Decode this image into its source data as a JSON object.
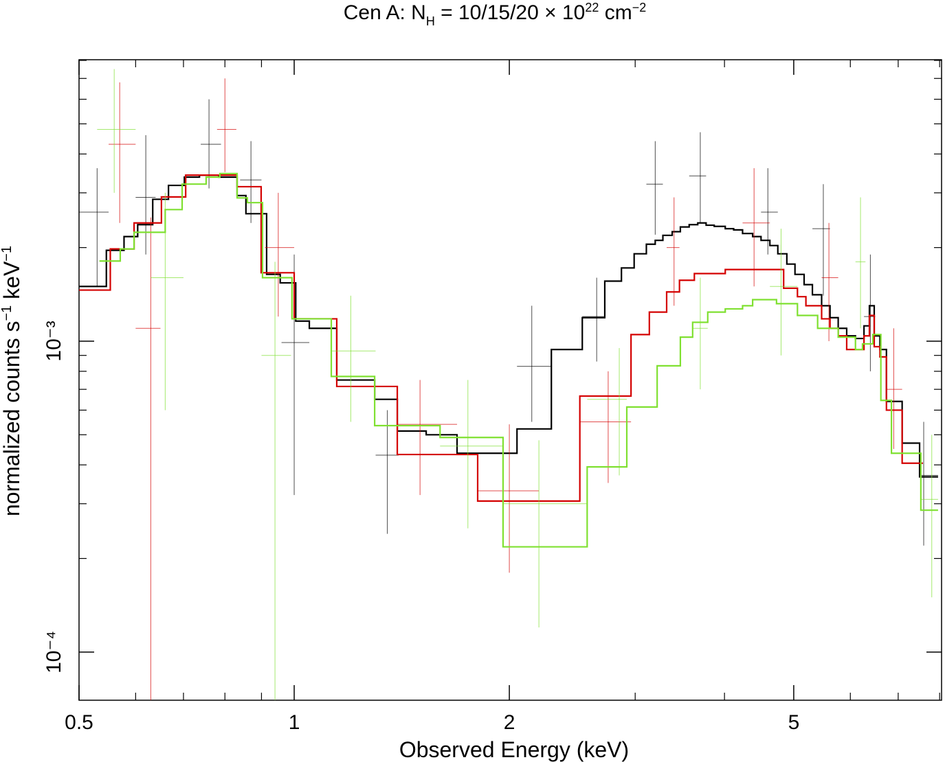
{
  "chart_data": {
    "type": "step",
    "title": [
      "Cen A: N",
      "H",
      " = 10/15/20 × 10",
      "22",
      " cm",
      "−2"
    ],
    "xlabel": "Observed Energy (keV)",
    "ylabel": [
      "normalized counts s",
      "−1",
      " keV",
      "−1"
    ],
    "xscale": "log",
    "yscale": "log",
    "xlim": [
      0.5,
      8.05
    ],
    "ylim": [
      7e-05,
      0.00804
    ],
    "xticks": [
      0.5,
      1,
      2,
      5
    ],
    "xminorticks": [
      0.6,
      0.7,
      0.8,
      0.9,
      3,
      4,
      6,
      7,
      8
    ],
    "yticks": [
      {
        "value": 0.0001,
        "label": "10⁻⁴"
      },
      {
        "value": 0.001,
        "label": "10⁻³"
      }
    ],
    "yminorticks": [
      0.0002,
      0.0003,
      0.0004,
      0.0005,
      0.0006,
      0.0007,
      0.0008,
      0.0009,
      0.002,
      0.003,
      0.004,
      0.005,
      0.006,
      0.007,
      0.008
    ],
    "series": [
      {
        "color": "#000000",
        "bins": [
          0.5,
          0.546,
          0.578,
          0.604,
          0.634,
          0.667,
          0.702,
          0.737,
          0.784,
          0.832,
          0.856,
          0.915,
          0.956,
          1.005,
          1.05,
          1.147,
          1.296,
          1.394,
          1.53,
          1.69,
          2.05,
          2.29,
          2.53,
          2.72,
          2.87,
          2.99,
          3.11,
          3.2,
          3.28,
          3.38,
          3.47,
          3.57,
          3.67,
          3.77,
          3.87,
          4.01,
          4.12,
          4.24,
          4.38,
          4.5,
          4.63,
          4.75,
          4.89,
          5.02,
          5.17,
          5.31,
          5.47,
          5.62,
          5.77,
          5.93,
          6.1,
          6.27,
          6.38,
          6.48,
          6.6,
          6.74,
          7.09,
          7.5,
          7.96
        ],
        "values": [
          0.0015,
          0.00196,
          0.00217,
          0.00237,
          0.00286,
          0.00317,
          0.00337,
          0.00342,
          0.00337,
          0.00294,
          0.00257,
          0.00164,
          0.00154,
          0.00116,
          0.0011,
          0.00075,
          0.00065,
          0.000514,
          0.0005,
          0.000436,
          0.000522,
          0.00094,
          0.00119,
          0.00156,
          0.00172,
          0.00191,
          0.00205,
          0.00211,
          0.00219,
          0.00225,
          0.00233,
          0.00237,
          0.0024,
          0.00236,
          0.00234,
          0.0023,
          0.00228,
          0.00222,
          0.00217,
          0.00211,
          0.00203,
          0.00191,
          0.00177,
          0.00164,
          0.00152,
          0.00141,
          0.0013,
          0.00119,
          0.0011,
          0.00104,
          0.00102,
          0.00112,
          0.0013,
          0.00104,
          0.00094,
          0.00064,
          0.00047,
          0.000366
        ],
        "points": {
          "x": [
            0.53,
            0.62,
            0.76,
            0.87,
            1.0,
            1.35,
            2.15,
            2.65,
            3.2,
            3.7,
            4.6,
            5.5,
            6.4,
            7.6
          ],
          "xlow": [
            0.5,
            0.6,
            0.74,
            0.84,
            0.96,
            1.3,
            2.05,
            2.53,
            3.11,
            3.57,
            4.5,
            5.31,
            6.27,
            7.5
          ],
          "xhigh": [
            0.55,
            0.64,
            0.79,
            0.9,
            1.05,
            1.4,
            2.29,
            2.72,
            3.28,
            3.77,
            4.75,
            5.62,
            6.5,
            7.96
          ],
          "y": [
            0.0026,
            0.0029,
            0.0043,
            0.0033,
            0.00099,
            0.00043,
            0.00083,
            0.0012,
            0.0032,
            0.0034,
            0.0026,
            0.0023,
            0.0012,
            0.00037
          ],
          "ylow": [
            0.0015,
            0.0019,
            0.0031,
            0.0024,
            0.00032,
            0.00024,
            0.00055,
            0.00086,
            0.0022,
            0.0024,
            0.0019,
            0.0014,
            0.0008,
            0.00022
          ],
          "yhigh": [
            0.0036,
            0.0046,
            0.006,
            0.0044,
            0.0019,
            0.0006,
            0.0013,
            0.0016,
            0.0044,
            0.0047,
            0.0036,
            0.0032,
            0.0019,
            0.00055
          ]
        }
      },
      {
        "color": "#d40000",
        "bins": [
          0.5,
          0.553,
          0.597,
          0.652,
          0.705,
          0.832,
          0.899,
          1.0,
          1.147,
          1.394,
          1.806,
          2.51,
          2.96,
          3.14,
          3.32,
          3.46,
          3.63,
          4.01,
          4.84,
          5.06,
          5.2,
          5.47,
          5.62,
          5.77,
          5.93,
          6.27,
          6.38,
          6.48,
          6.6,
          6.74,
          7.09,
          7.58
        ],
        "values": [
          0.00146,
          0.00198,
          0.0024,
          0.00291,
          0.00342,
          0.00314,
          0.00166,
          0.00118,
          0.000715,
          0.000432,
          0.000306,
          0.000666,
          0.00105,
          0.00124,
          0.00144,
          0.00157,
          0.00165,
          0.0017,
          0.00148,
          0.00139,
          0.0013,
          0.00118,
          0.0011,
          0.00104,
          0.00094,
          0.00104,
          0.00121,
          0.00096,
          0.00089,
          0.0006,
          0.000405
        ],
        "points": {
          "x": [
            0.57,
            0.63,
            0.8,
            0.95,
            1.5,
            2.0,
            2.75,
            3.4,
            4.4,
            5.6,
            6.9
          ],
          "xlow": [
            0.55,
            0.6,
            0.78,
            0.91,
            1.39,
            1.81,
            2.51,
            3.32,
            4.24,
            5.47,
            6.74
          ],
          "xhigh": [
            0.6,
            0.65,
            0.83,
            1.0,
            1.69,
            2.2,
            2.96,
            3.46,
            4.63,
            5.77,
            7.09
          ],
          "y": [
            0.0043,
            0.0011,
            0.0048,
            0.002,
            0.00054,
            0.00033,
            0.00055,
            0.002,
            0.0024,
            0.0016,
            0.0007
          ],
          "ylow": [
            0.0024,
            7e-05,
            0.0035,
            0.0012,
            0.00032,
            0.00018,
            0.00035,
            0.0013,
            0.0015,
            0.001,
            0.00045
          ],
          "yhigh": [
            0.0068,
            0.0025,
            0.007,
            0.003,
            0.00075,
            0.00054,
            0.0008,
            0.0029,
            0.0036,
            0.0024,
            0.0011
          ]
        }
      },
      {
        "color": "#7fe030",
        "bins": [
          0.534,
          0.571,
          0.597,
          0.66,
          0.697,
          0.753,
          0.787,
          0.832,
          0.86,
          0.903,
          0.993,
          1.127,
          1.296,
          1.6,
          1.96,
          2.57,
          2.92,
          3.22,
          3.47,
          3.61,
          3.79,
          4.01,
          4.24,
          4.38,
          4.73,
          5.06,
          5.4,
          5.77,
          6.1,
          6.24,
          6.45,
          6.62,
          6.85,
          7.53,
          7.96
        ],
        "values": [
          0.00181,
          0.00198,
          0.00224,
          0.00265,
          0.0032,
          0.00337,
          0.00346,
          0.00289,
          0.00279,
          0.0016,
          0.00118,
          0.00077,
          0.000535,
          0.00049,
          0.000218,
          0.000394,
          0.000614,
          0.000833,
          0.00103,
          0.00115,
          0.00124,
          0.00127,
          0.0013,
          0.00136,
          0.00132,
          0.00121,
          0.0011,
          0.00103,
          0.00094,
          0.00098,
          0.00105,
          0.000645,
          0.000436,
          0.000286
        ],
        "points": {
          "x": [
            0.56,
            0.66,
            0.94,
            1.2,
            1.75,
            2.2,
            2.85,
            3.7,
            4.8,
            6.2,
            7.8
          ],
          "xlow": [
            0.53,
            0.63,
            0.9,
            1.13,
            1.6,
            1.96,
            2.57,
            3.61,
            4.63,
            6.1,
            7.53
          ],
          "xhigh": [
            0.6,
            0.7,
            0.99,
            1.3,
            1.96,
            2.57,
            2.92,
            3.79,
            5.06,
            6.3,
            7.96
          ],
          "y": [
            0.0048,
            0.0016,
            0.0009,
            0.00093,
            0.00046,
            0.0003,
            0.00065,
            0.0011,
            0.0015,
            0.0018,
            0.00031
          ],
          "ylow": [
            0.003,
            0.0006,
            7e-05,
            0.00055,
            0.00025,
            0.00012,
            0.00037,
            0.0007,
            0.0009,
            0.0011,
            0.00015
          ],
          "yhigh": [
            0.0075,
            0.003,
            0.0018,
            0.0014,
            0.00075,
            0.00048,
            0.00095,
            0.0016,
            0.0023,
            0.0029,
            0.0005
          ]
        }
      }
    ]
  }
}
